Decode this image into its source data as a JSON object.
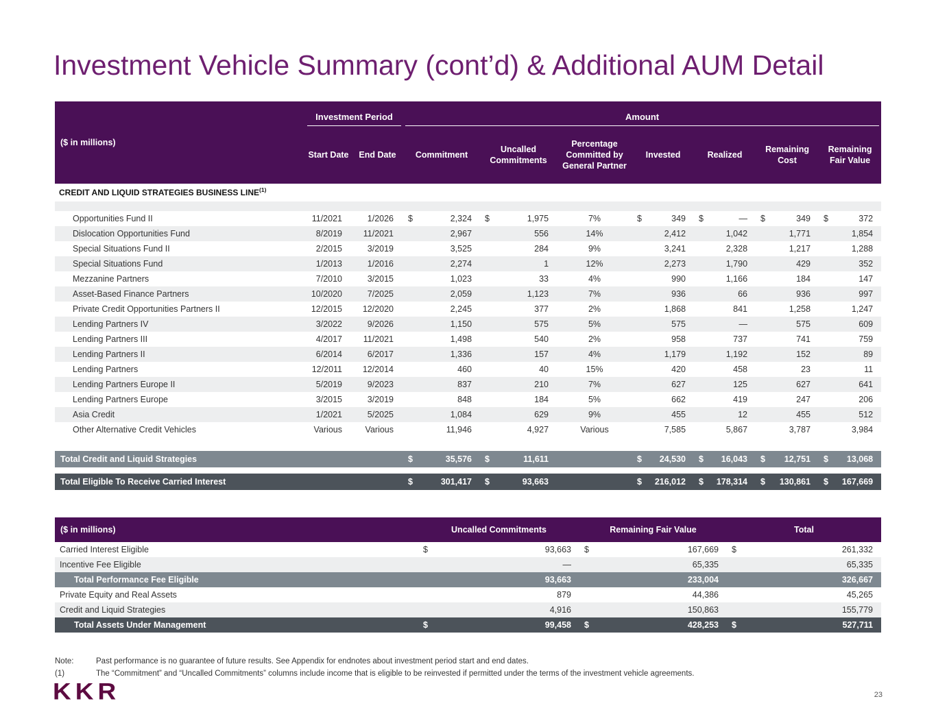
{
  "page": {
    "title": "Investment Vehicle Summary (cont’d) & Additional AUM Detail",
    "logo": "KKR",
    "page_number": "23"
  },
  "colors": {
    "purple": "#4A1056",
    "title": "#6E1F70",
    "stripe": "#EDEEEF",
    "total_gray": "#7E8890",
    "total_dark": "#4C535A",
    "logo_color": "#5D0B41"
  },
  "table1": {
    "unit_label": "($ in millions)",
    "group_headers": {
      "investment_period": "Investment Period",
      "amount": "Amount"
    },
    "columns": [
      "Start Date",
      "End Date",
      "Commitment",
      "Uncalled Commitments",
      "Percentage Committed by General Partner",
      "Invested",
      "Realized",
      "Remaining Cost",
      "Remaining Fair Value"
    ],
    "section_header": "CREDIT AND LIQUID STRATEGIES BUSINESS LINE",
    "section_superscript": "(1)",
    "rows": [
      {
        "name": "Opportunities Fund II",
        "start": "11/2021",
        "end": "1/2026",
        "commitment": "2,324",
        "uncalled": "1,975",
        "pct": "7%",
        "invested": "349",
        "realized": "—",
        "remaining_cost": "349",
        "remaining_fv": "372",
        "dollar": true
      },
      {
        "name": "Dislocation Opportunities Fund",
        "start": "8/2019",
        "end": "11/2021",
        "commitment": "2,967",
        "uncalled": "556",
        "pct": "14%",
        "invested": "2,412",
        "realized": "1,042",
        "remaining_cost": "1,771",
        "remaining_fv": "1,854"
      },
      {
        "name": "Special Situations Fund II",
        "start": "2/2015",
        "end": "3/2019",
        "commitment": "3,525",
        "uncalled": "284",
        "pct": "9%",
        "invested": "3,241",
        "realized": "2,328",
        "remaining_cost": "1,217",
        "remaining_fv": "1,288"
      },
      {
        "name": "Special Situations Fund",
        "start": "1/2013",
        "end": "1/2016",
        "commitment": "2,274",
        "uncalled": "1",
        "pct": "12%",
        "invested": "2,273",
        "realized": "1,790",
        "remaining_cost": "429",
        "remaining_fv": "352"
      },
      {
        "name": "Mezzanine Partners",
        "start": "7/2010",
        "end": "3/2015",
        "commitment": "1,023",
        "uncalled": "33",
        "pct": "4%",
        "invested": "990",
        "realized": "1,166",
        "remaining_cost": "184",
        "remaining_fv": "147"
      },
      {
        "name": "Asset-Based Finance Partners",
        "start": "10/2020",
        "end": "7/2025",
        "commitment": "2,059",
        "uncalled": "1,123",
        "pct": "7%",
        "invested": "936",
        "realized": "66",
        "remaining_cost": "936",
        "remaining_fv": "997"
      },
      {
        "name": "Private Credit Opportunities Partners II",
        "start": "12/2015",
        "end": "12/2020",
        "commitment": "2,245",
        "uncalled": "377",
        "pct": "2%",
        "invested": "1,868",
        "realized": "841",
        "remaining_cost": "1,258",
        "remaining_fv": "1,247"
      },
      {
        "name": "Lending Partners IV",
        "start": "3/2022",
        "end": "9/2026",
        "commitment": "1,150",
        "uncalled": "575",
        "pct": "5%",
        "invested": "575",
        "realized": "—",
        "remaining_cost": "575",
        "remaining_fv": "609"
      },
      {
        "name": "Lending Partners III",
        "start": "4/2017",
        "end": "11/2021",
        "commitment": "1,498",
        "uncalled": "540",
        "pct": "2%",
        "invested": "958",
        "realized": "737",
        "remaining_cost": "741",
        "remaining_fv": "759"
      },
      {
        "name": "Lending Partners II",
        "start": "6/2014",
        "end": "6/2017",
        "commitment": "1,336",
        "uncalled": "157",
        "pct": "4%",
        "invested": "1,179",
        "realized": "1,192",
        "remaining_cost": "152",
        "remaining_fv": "89"
      },
      {
        "name": "Lending Partners",
        "start": "12/2011",
        "end": "12/2014",
        "commitment": "460",
        "uncalled": "40",
        "pct": "15%",
        "invested": "420",
        "realized": "458",
        "remaining_cost": "23",
        "remaining_fv": "11"
      },
      {
        "name": "Lending Partners Europe II",
        "start": "5/2019",
        "end": "9/2023",
        "commitment": "837",
        "uncalled": "210",
        "pct": "7%",
        "invested": "627",
        "realized": "125",
        "remaining_cost": "627",
        "remaining_fv": "641"
      },
      {
        "name": "Lending Partners Europe",
        "start": "3/2015",
        "end": "3/2019",
        "commitment": "848",
        "uncalled": "184",
        "pct": "5%",
        "invested": "662",
        "realized": "419",
        "remaining_cost": "247",
        "remaining_fv": "206"
      },
      {
        "name": "Asia Credit",
        "start": "1/2021",
        "end": "5/2025",
        "commitment": "1,084",
        "uncalled": "629",
        "pct": "9%",
        "invested": "455",
        "realized": "12",
        "remaining_cost": "455",
        "remaining_fv": "512"
      },
      {
        "name": "Other Alternative Credit Vehicles",
        "start": "Various",
        "end": "Various",
        "commitment": "11,946",
        "uncalled": "4,927",
        "pct": "Various",
        "invested": "7,585",
        "realized": "5,867",
        "remaining_cost": "3,787",
        "remaining_fv": "3,984"
      }
    ],
    "totals": [
      {
        "label": "Total Credit and Liquid Strategies",
        "commitment": "35,576",
        "uncalled": "11,611",
        "invested": "24,530",
        "realized": "16,043",
        "remaining_cost": "12,751",
        "remaining_fv": "13,068"
      },
      {
        "label": "Total Eligible To Receive Carried Interest",
        "commitment": "301,417",
        "uncalled": "93,663",
        "invested": "216,012",
        "realized": "178,314",
        "remaining_cost": "130,861",
        "remaining_fv": "167,669"
      }
    ]
  },
  "table2": {
    "unit_label": "($ in millions)",
    "columns": [
      "Uncalled Commitments",
      "Remaining Fair Value",
      "Total"
    ],
    "rows": [
      {
        "label": "Carried Interest Eligible",
        "values": [
          "93,663",
          "167,669",
          "261,332"
        ],
        "dollar": true,
        "style": "normal"
      },
      {
        "label": "Incentive Fee Eligible",
        "values": [
          "—",
          "65,335",
          "65,335"
        ],
        "style": "stripe"
      },
      {
        "label": "Total Performance Fee Eligible",
        "values": [
          "93,663",
          "233,004",
          "326,667"
        ],
        "style": "total-gray"
      },
      {
        "label": "Private Equity and Real Assets",
        "values": [
          "879",
          "44,386",
          "45,265"
        ],
        "style": "normal"
      },
      {
        "label": "Credit and Liquid Strategies",
        "values": [
          "4,916",
          "150,863",
          "155,779"
        ],
        "style": "stripe"
      },
      {
        "label": "Total Assets Under Management",
        "values": [
          "99,458",
          "428,253",
          "527,711"
        ],
        "dollar": true,
        "style": "total-dark"
      }
    ]
  },
  "notes": [
    {
      "label": "Note:",
      "text": "Past performance is no guarantee of future results. See Appendix for endnotes about investment period start and end dates."
    },
    {
      "label": "(1)",
      "text": "The “Commitment” and “Uncalled Commitments” columns include income that is eligible to be reinvested if permitted under the terms of the investment vehicle agreements."
    }
  ]
}
